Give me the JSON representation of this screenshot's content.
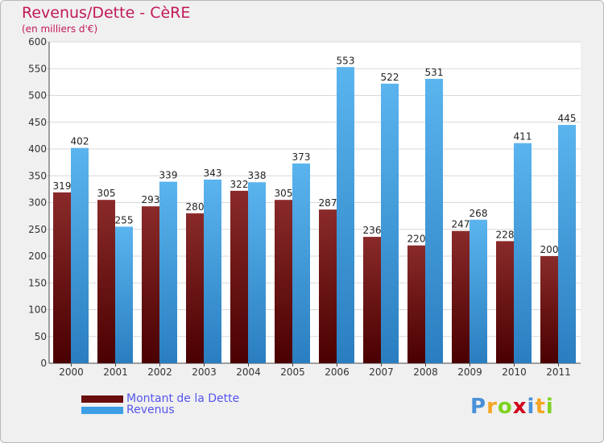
{
  "chart_data": {
    "type": "bar",
    "title": "Revenus/Dette - CèRE",
    "subtitle": "(en milliers d'€)",
    "categories": [
      "2000",
      "2001",
      "2002",
      "2003",
      "2004",
      "2005",
      "2006",
      "2007",
      "2008",
      "2009",
      "2010",
      "2011"
    ],
    "series": [
      {
        "name": "Montant de la Dette",
        "color": "#7a1a1a",
        "values": [
          319,
          305,
          293,
          280,
          322,
          305,
          287,
          236,
          220,
          247,
          228,
          200
        ]
      },
      {
        "name": "Revenus",
        "color": "#4aa3e0",
        "values": [
          402,
          255,
          339,
          343,
          338,
          373,
          553,
          522,
          531,
          268,
          411,
          445
        ]
      }
    ],
    "yticks": [
      0,
      50,
      100,
      150,
      200,
      250,
      300,
      350,
      400,
      450,
      500,
      550,
      600
    ],
    "ylim": [
      0,
      600
    ],
    "grid": true,
    "legend": "bottom-left"
  },
  "logo": {
    "letters": [
      "P",
      "r",
      "o",
      "x",
      "i",
      "t",
      "i"
    ],
    "colors": [
      "#4a90d9",
      "#f5a623",
      "#7ed321",
      "#d0021b",
      "#4a90d9",
      "#f5a623",
      "#7ed321"
    ]
  }
}
